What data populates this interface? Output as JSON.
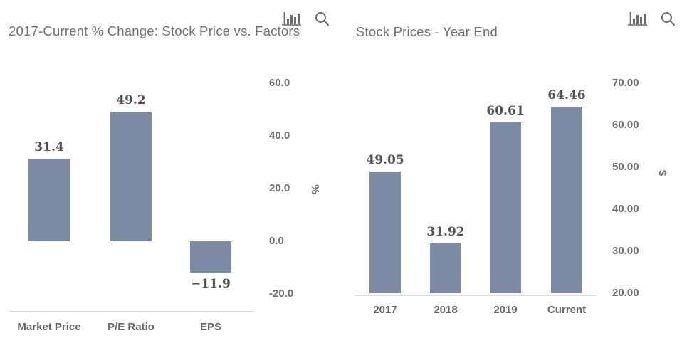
{
  "colors": {
    "bar": "#7b8aa5",
    "title_text": "#6f6f6f",
    "data_label_text": "#525252",
    "axis_text": "#6b6b6b",
    "axis_line": "#d9d9d9",
    "icon": "#6a6a6a",
    "background": "#ffffff"
  },
  "toolbar": {
    "chart_type_icon": "bar-chart",
    "zoom_icon": "magnifying-glass"
  },
  "chart_data": [
    {
      "type": "bar",
      "title": "2017-Current % Change: Stock Price vs. Factors",
      "categories": [
        "Market Price",
        "P/E Ratio",
        "EPS"
      ],
      "values": [
        31.4,
        49.2,
        -11.9
      ],
      "data_labels": [
        "31.4",
        "49.2",
        "−11.9"
      ],
      "xlabel": "",
      "ylabel": "%",
      "ylim": [
        -26,
        65
      ],
      "yticks": [
        60,
        40,
        20,
        0,
        -20
      ],
      "ytick_labels": [
        "60.0",
        "40.0",
        "20.0",
        "0.0",
        "-20.0"
      ],
      "baseline": 0,
      "grid": false,
      "legend": "none"
    },
    {
      "type": "bar",
      "title": "Stock Prices - Year End",
      "categories": [
        "2017",
        "2018",
        "2019",
        "Current"
      ],
      "values": [
        49.05,
        31.92,
        60.61,
        64.46
      ],
      "data_labels": [
        "49.05",
        "31.92",
        "60.61",
        "64.46"
      ],
      "xlabel": "",
      "ylabel": "$",
      "ylim": [
        20,
        73
      ],
      "yticks": [
        70,
        60,
        50,
        40,
        30,
        20
      ],
      "ytick_labels": [
        "70.00",
        "60.00",
        "50.00",
        "40.00",
        "30.00",
        "20.00"
      ],
      "baseline": 20,
      "grid": false,
      "legend": "none"
    }
  ]
}
